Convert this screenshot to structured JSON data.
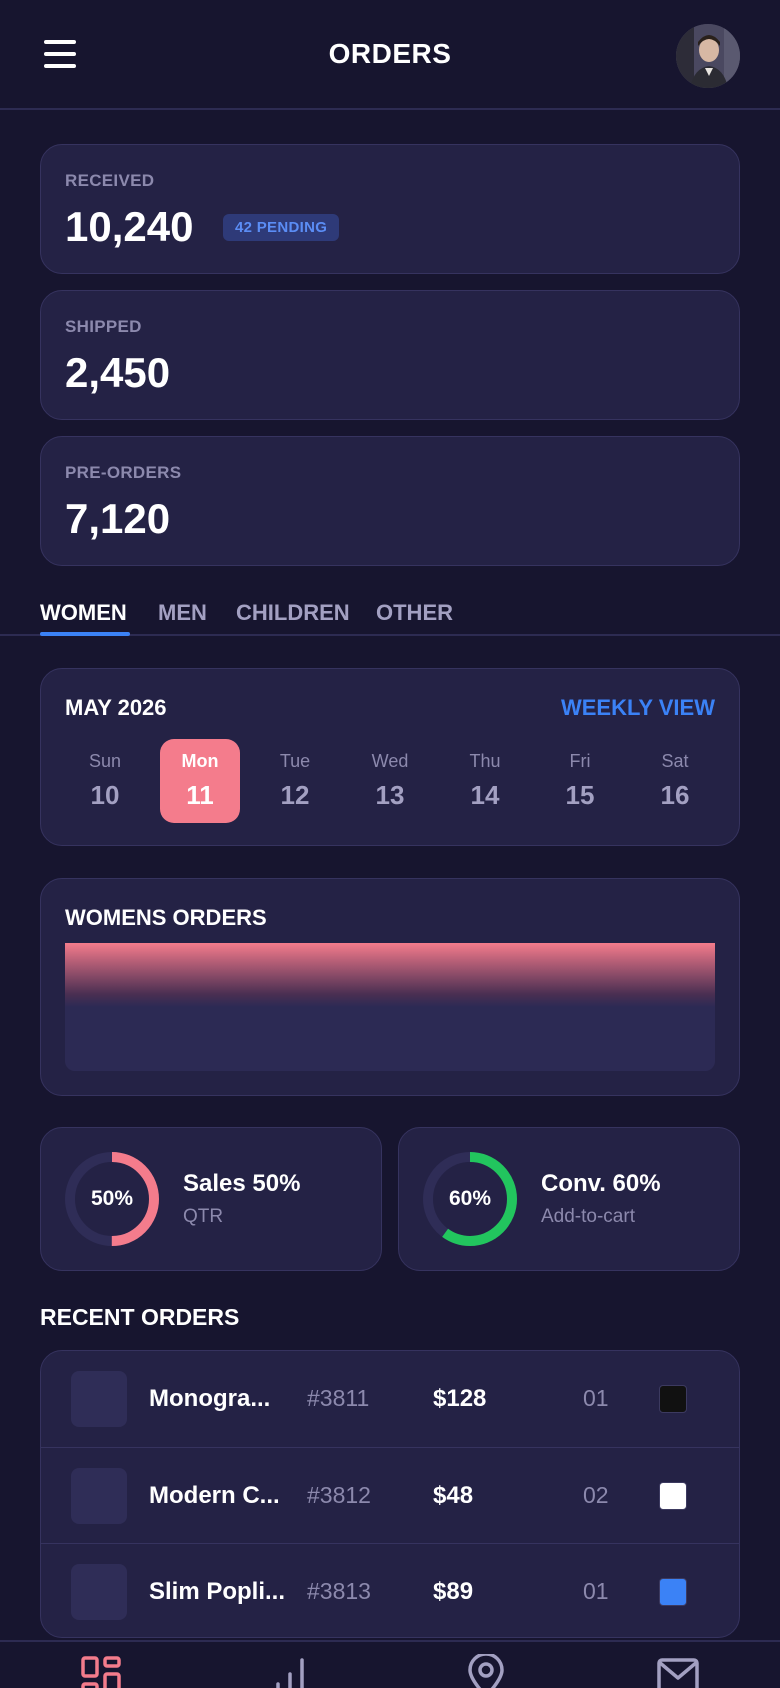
{
  "header": {
    "title": "ORDERS"
  },
  "stats": [
    {
      "label": "RECEIVED",
      "value": "10,240",
      "badge": "42 PENDING"
    },
    {
      "label": "SHIPPED",
      "value": "2,450"
    },
    {
      "label": "PRE-ORDERS",
      "value": "7,120"
    }
  ],
  "tabs": [
    "WOMEN",
    "MEN",
    "CHILDREN",
    "OTHER"
  ],
  "calendar": {
    "month": "MAY 2026",
    "link": "WEEKLY VIEW",
    "days": [
      {
        "name": "Sun",
        "date": "10"
      },
      {
        "name": "Mon",
        "date": "11",
        "selected": true
      },
      {
        "name": "Tue",
        "date": "12"
      },
      {
        "name": "Wed",
        "date": "13"
      },
      {
        "name": "Thu",
        "date": "14"
      },
      {
        "name": "Fri",
        "date": "15"
      },
      {
        "name": "Sat",
        "date": "16"
      }
    ]
  },
  "chart": {
    "title": "WOMENS ORDERS"
  },
  "kpis": [
    {
      "label": "50%",
      "value": 0.5,
      "title": "Sales 50%",
      "sub": "QTR",
      "color": "#f47c8c"
    },
    {
      "label": "60%",
      "value": 0.6,
      "title": "Conv. 60%",
      "sub": "Add-to-cart",
      "color": "#22c55e"
    }
  ],
  "recent": {
    "title": "RECENT ORDERS",
    "orders": [
      {
        "name": "Monogra...",
        "id": "#3811",
        "price": "$128",
        "qty": "01",
        "swatch": "#111111"
      },
      {
        "name": "Modern C...",
        "id": "#3812",
        "price": "$48",
        "qty": "02",
        "swatch": "#ffffff"
      },
      {
        "name": "Slim Popli...",
        "id": "#3813",
        "price": "$89",
        "qty": "01",
        "swatch": "#3b82f6"
      }
    ]
  },
  "colors": {
    "accent": "#3b82f6",
    "pink": "#f47c8c",
    "green": "#22c55e",
    "background": "#17152f",
    "card": "#242245"
  },
  "nav": [
    "dashboard-icon",
    "stats-icon",
    "location-icon",
    "mail-icon"
  ]
}
